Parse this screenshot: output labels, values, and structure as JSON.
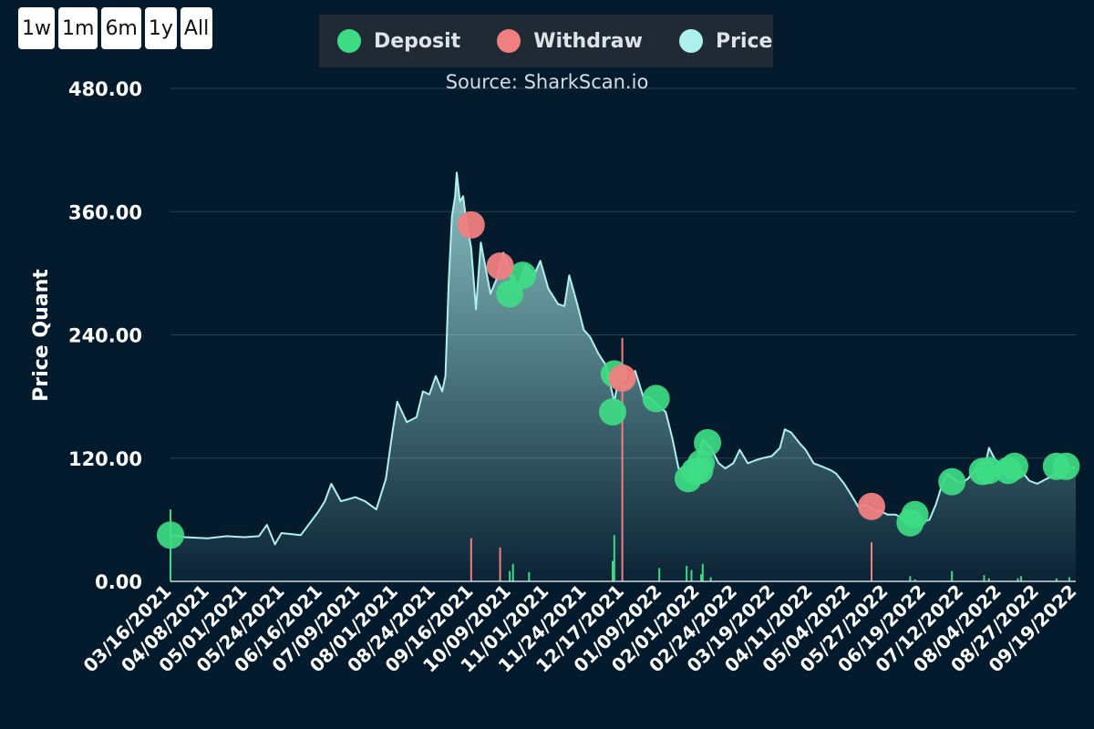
{
  "range_buttons": [
    "1w",
    "1m",
    "6m",
    "1y",
    "All"
  ],
  "legend": {
    "items": [
      {
        "label": "Deposit",
        "color": "#3ddc84"
      },
      {
        "label": "Withdraw",
        "color": "#f08080"
      },
      {
        "label": "Price",
        "color": "#aef0ee"
      }
    ]
  },
  "source_text": "Source: SharkScan.io",
  "chart_data": {
    "type": "area",
    "ylabel": "Price Quant",
    "ylim": [
      0,
      480
    ],
    "yticks": [
      "0.00",
      "120.00",
      "240.00",
      "360.00",
      "480.00"
    ],
    "grid": true,
    "legend_position": "top",
    "x_range": [
      "2021-03-16",
      "2022-09-30"
    ],
    "xtick_labels": [
      "03/16/2021",
      "04/08/2021",
      "05/01/2021",
      "05/24/2021",
      "06/16/2021",
      "07/09/2021",
      "08/01/2021",
      "08/24/2021",
      "09/16/2021",
      "10/09/2021",
      "11/01/2021",
      "11/24/2021",
      "12/17/2021",
      "01/09/2022",
      "02/01/2022",
      "02/24/2022",
      "03/19/2022",
      "04/11/2022",
      "05/04/2022",
      "05/27/2022",
      "06/19/2022",
      "07/12/2022",
      "08/04/2022",
      "08/27/2022",
      "09/19/2022"
    ],
    "colors": {
      "line": "#aef0ee",
      "deposit": "#3ddc84",
      "withdraw": "#f08080"
    },
    "price": [
      [
        "2021-03-16",
        45
      ],
      [
        "2021-03-25",
        43
      ],
      [
        "2021-04-08",
        42
      ],
      [
        "2021-04-20",
        44
      ],
      [
        "2021-05-01",
        43
      ],
      [
        "2021-05-10",
        44
      ],
      [
        "2021-05-15",
        55
      ],
      [
        "2021-05-20",
        36
      ],
      [
        "2021-05-24",
        47
      ],
      [
        "2021-06-05",
        45
      ],
      [
        "2021-06-16",
        68
      ],
      [
        "2021-06-20",
        78
      ],
      [
        "2021-06-24",
        95
      ],
      [
        "2021-06-30",
        78
      ],
      [
        "2021-07-09",
        82
      ],
      [
        "2021-07-15",
        78
      ],
      [
        "2021-07-22",
        70
      ],
      [
        "2021-07-28",
        100
      ],
      [
        "2021-08-01",
        145
      ],
      [
        "2021-08-04",
        175
      ],
      [
        "2021-08-10",
        155
      ],
      [
        "2021-08-16",
        160
      ],
      [
        "2021-08-20",
        185
      ],
      [
        "2021-08-24",
        182
      ],
      [
        "2021-08-28",
        200
      ],
      [
        "2021-09-01",
        185
      ],
      [
        "2021-09-03",
        200
      ],
      [
        "2021-09-05",
        290
      ],
      [
        "2021-09-07",
        355
      ],
      [
        "2021-09-09",
        375
      ],
      [
        "2021-09-10",
        398
      ],
      [
        "2021-09-12",
        370
      ],
      [
        "2021-09-14",
        375
      ],
      [
        "2021-09-16",
        350
      ],
      [
        "2021-09-19",
        325
      ],
      [
        "2021-09-22",
        265
      ],
      [
        "2021-09-25",
        330
      ],
      [
        "2021-10-01",
        280
      ],
      [
        "2021-10-05",
        295
      ],
      [
        "2021-10-09",
        320
      ],
      [
        "2021-10-14",
        300
      ],
      [
        "2021-10-18",
        285
      ],
      [
        "2021-10-23",
        308
      ],
      [
        "2021-10-28",
        298
      ],
      [
        "2021-11-01",
        312
      ],
      [
        "2021-11-06",
        285
      ],
      [
        "2021-11-12",
        270
      ],
      [
        "2021-11-16",
        268
      ],
      [
        "2021-11-19",
        298
      ],
      [
        "2021-11-24",
        270
      ],
      [
        "2021-11-28",
        245
      ],
      [
        "2021-12-02",
        238
      ],
      [
        "2021-12-07",
        222
      ],
      [
        "2021-12-12",
        210
      ],
      [
        "2021-12-14",
        195
      ],
      [
        "2021-12-17",
        175
      ],
      [
        "2021-12-20",
        200
      ],
      [
        "2021-12-24",
        188
      ],
      [
        "2021-12-30",
        205
      ],
      [
        "2022-01-04",
        180
      ],
      [
        "2022-01-09",
        178
      ],
      [
        "2022-01-14",
        170
      ],
      [
        "2022-01-18",
        165
      ],
      [
        "2022-01-22",
        140
      ],
      [
        "2022-01-26",
        110
      ],
      [
        "2022-02-01",
        105
      ],
      [
        "2022-02-06",
        112
      ],
      [
        "2022-02-10",
        138
      ],
      [
        "2022-02-15",
        130
      ],
      [
        "2022-02-20",
        115
      ],
      [
        "2022-02-24",
        110
      ],
      [
        "2022-03-01",
        115
      ],
      [
        "2022-03-05",
        128
      ],
      [
        "2022-03-10",
        115
      ],
      [
        "2022-03-15",
        118
      ],
      [
        "2022-03-19",
        120
      ],
      [
        "2022-03-25",
        122
      ],
      [
        "2022-03-30",
        130
      ],
      [
        "2022-04-02",
        148
      ],
      [
        "2022-04-06",
        145
      ],
      [
        "2022-04-11",
        135
      ],
      [
        "2022-04-15",
        128
      ],
      [
        "2022-04-20",
        115
      ],
      [
        "2022-04-25",
        112
      ],
      [
        "2022-05-01",
        108
      ],
      [
        "2022-05-04",
        105
      ],
      [
        "2022-05-09",
        95
      ],
      [
        "2022-05-13",
        85
      ],
      [
        "2022-05-18",
        72
      ],
      [
        "2022-05-22",
        75
      ],
      [
        "2022-05-27",
        70
      ],
      [
        "2022-06-01",
        68
      ],
      [
        "2022-06-05",
        65
      ],
      [
        "2022-06-10",
        65
      ],
      [
        "2022-06-15",
        60
      ],
      [
        "2022-06-19",
        58
      ],
      [
        "2022-06-22",
        62
      ],
      [
        "2022-06-26",
        58
      ],
      [
        "2022-07-01",
        60
      ],
      [
        "2022-07-05",
        75
      ],
      [
        "2022-07-09",
        95
      ],
      [
        "2022-07-12",
        105
      ],
      [
        "2022-07-16",
        100
      ],
      [
        "2022-07-20",
        95
      ],
      [
        "2022-07-25",
        100
      ],
      [
        "2022-07-30",
        110
      ],
      [
        "2022-08-04",
        108
      ],
      [
        "2022-08-07",
        130
      ],
      [
        "2022-08-11",
        118
      ],
      [
        "2022-08-16",
        112
      ],
      [
        "2022-08-21",
        115
      ],
      [
        "2022-08-27",
        108
      ],
      [
        "2022-09-01",
        98
      ],
      [
        "2022-09-06",
        95
      ],
      [
        "2022-09-12",
        100
      ],
      [
        "2022-09-19",
        105
      ],
      [
        "2022-09-25",
        112
      ],
      [
        "2022-09-30",
        110
      ]
    ],
    "deposits": [
      [
        "2021-03-16",
        45
      ],
      [
        "2021-10-13",
        280
      ],
      [
        "2021-10-21",
        298
      ],
      [
        "2021-12-16",
        165
      ],
      [
        "2021-12-17",
        202
      ],
      [
        "2022-01-12",
        178
      ],
      [
        "2022-02-01",
        100
      ],
      [
        "2022-02-05",
        107
      ],
      [
        "2022-02-08",
        108
      ],
      [
        "2022-02-09",
        115
      ],
      [
        "2022-02-13",
        135
      ],
      [
        "2022-06-19",
        57
      ],
      [
        "2022-06-22",
        65
      ],
      [
        "2022-07-15",
        97
      ],
      [
        "2022-08-03",
        107
      ],
      [
        "2022-08-07",
        108
      ],
      [
        "2022-08-19",
        108
      ],
      [
        "2022-08-23",
        112
      ],
      [
        "2022-09-18",
        112
      ],
      [
        "2022-09-24",
        112
      ]
    ],
    "withdraws": [
      [
        "2021-09-19",
        347
      ],
      [
        "2021-10-07",
        307
      ],
      [
        "2021-12-22",
        198
      ],
      [
        "2022-05-26",
        73
      ]
    ],
    "deposit_volume_bars": [
      [
        "2021-03-16",
        70
      ],
      [
        "2021-10-13",
        10
      ],
      [
        "2021-10-15",
        17
      ],
      [
        "2021-10-25",
        9
      ],
      [
        "2021-12-16",
        20
      ],
      [
        "2021-12-17",
        45
      ],
      [
        "2022-01-14",
        13
      ],
      [
        "2022-01-31",
        15
      ],
      [
        "2022-02-03",
        11
      ],
      [
        "2022-02-09",
        7
      ],
      [
        "2022-02-10",
        17
      ],
      [
        "2022-02-15",
        4
      ],
      [
        "2022-06-19",
        5
      ],
      [
        "2022-06-22",
        2
      ],
      [
        "2022-07-15",
        10
      ],
      [
        "2022-08-04",
        6
      ],
      [
        "2022-08-07",
        3
      ],
      [
        "2022-08-25",
        3
      ],
      [
        "2022-08-27",
        5
      ],
      [
        "2022-09-18",
        3
      ],
      [
        "2022-09-26",
        4
      ]
    ],
    "withdraw_volume_bars": [
      [
        "2021-09-19",
        42
      ],
      [
        "2021-10-07",
        33
      ],
      [
        "2021-12-22",
        237
      ],
      [
        "2022-05-26",
        38
      ]
    ]
  }
}
